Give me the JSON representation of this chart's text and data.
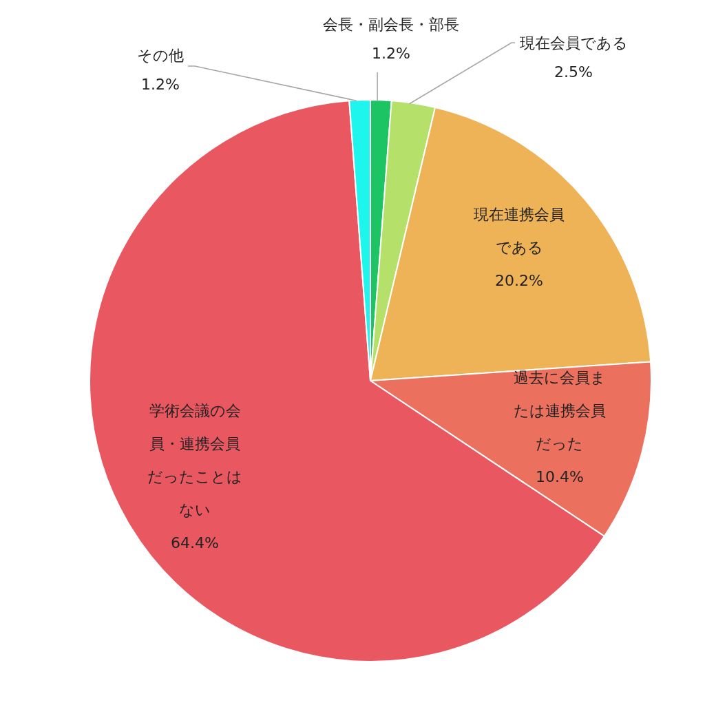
{
  "chart_data": {
    "type": "pie",
    "categories": [
      "会長・副会長・部長",
      "現在会員である",
      "現在連携会員である",
      "過去に会員または連携会員だった",
      "学術会議の会員・連携会員だったことはない",
      "その他"
    ],
    "values": [
      1.2,
      2.5,
      20.2,
      10.4,
      64.4,
      1.2
    ],
    "colors": [
      "#1dc463",
      "#b5e06a",
      "#eeb257",
      "#ec705e",
      "#e95761",
      "#1ef5ec"
    ],
    "value_labels": [
      "1.2%",
      "2.5%",
      "20.2%",
      "10.4%",
      "64.4%",
      "1.2%"
    ],
    "legend": false
  }
}
